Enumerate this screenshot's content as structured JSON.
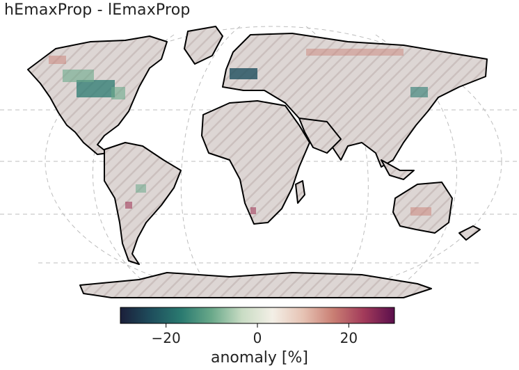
{
  "title": "hEmaxProp - lEmaxProp",
  "colorbar": {
    "label": "anomaly [%]",
    "ticks": [
      {
        "value": -20,
        "text": "−20"
      },
      {
        "value": 0,
        "text": "0"
      },
      {
        "value": 20,
        "text": "20"
      }
    ],
    "range": [
      -30,
      30
    ],
    "stops": [
      "#1b1f3a",
      "#1e4d5c",
      "#2a7a70",
      "#6aa98a",
      "#c9dcc4",
      "#f3efe6",
      "#e6c3b4",
      "#c97e73",
      "#a23a5a",
      "#5a0f4c"
    ]
  },
  "map": {
    "projection": "Robinson",
    "land_color": "#dcd5d3",
    "hatch_color": "#d0c4c2",
    "coastline_color": "#000000",
    "gridline_color": "#b9b9b9"
  }
}
